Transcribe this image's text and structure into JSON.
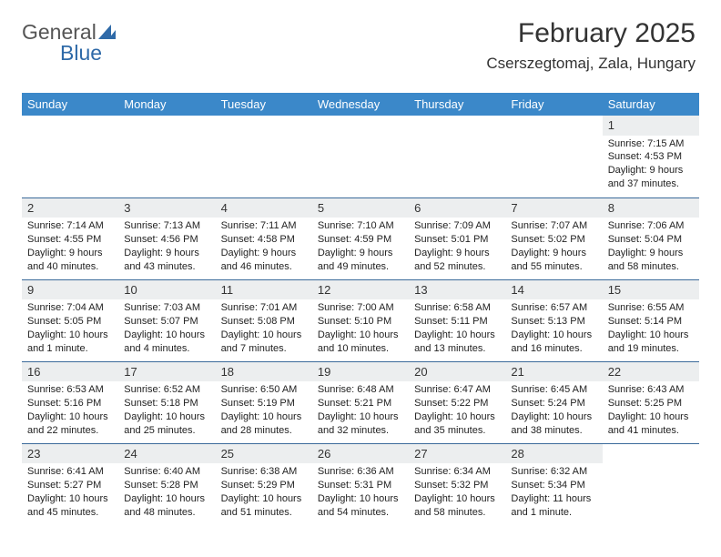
{
  "logo": {
    "text1": "General",
    "text2": "Blue"
  },
  "header": {
    "title": "February 2025",
    "location": "Cserszegtomaj, Zala, Hungary"
  },
  "colors": {
    "header_bg": "#3b88c9",
    "header_text": "#ffffff",
    "daynum_bg": "#eceeef",
    "row_border": "#3b6a9a",
    "logo_gray": "#555555",
    "logo_blue": "#2f6aa8",
    "body_text": "#222222",
    "page_bg": "#ffffff"
  },
  "day_headers": [
    "Sunday",
    "Monday",
    "Tuesday",
    "Wednesday",
    "Thursday",
    "Friday",
    "Saturday"
  ],
  "weeks": [
    [
      null,
      null,
      null,
      null,
      null,
      null,
      {
        "n": "1",
        "sunrise": "Sunrise: 7:15 AM",
        "sunset": "Sunset: 4:53 PM",
        "daylight": "Daylight: 9 hours and 37 minutes."
      }
    ],
    [
      {
        "n": "2",
        "sunrise": "Sunrise: 7:14 AM",
        "sunset": "Sunset: 4:55 PM",
        "daylight": "Daylight: 9 hours and 40 minutes."
      },
      {
        "n": "3",
        "sunrise": "Sunrise: 7:13 AM",
        "sunset": "Sunset: 4:56 PM",
        "daylight": "Daylight: 9 hours and 43 minutes."
      },
      {
        "n": "4",
        "sunrise": "Sunrise: 7:11 AM",
        "sunset": "Sunset: 4:58 PM",
        "daylight": "Daylight: 9 hours and 46 minutes."
      },
      {
        "n": "5",
        "sunrise": "Sunrise: 7:10 AM",
        "sunset": "Sunset: 4:59 PM",
        "daylight": "Daylight: 9 hours and 49 minutes."
      },
      {
        "n": "6",
        "sunrise": "Sunrise: 7:09 AM",
        "sunset": "Sunset: 5:01 PM",
        "daylight": "Daylight: 9 hours and 52 minutes."
      },
      {
        "n": "7",
        "sunrise": "Sunrise: 7:07 AM",
        "sunset": "Sunset: 5:02 PM",
        "daylight": "Daylight: 9 hours and 55 minutes."
      },
      {
        "n": "8",
        "sunrise": "Sunrise: 7:06 AM",
        "sunset": "Sunset: 5:04 PM",
        "daylight": "Daylight: 9 hours and 58 minutes."
      }
    ],
    [
      {
        "n": "9",
        "sunrise": "Sunrise: 7:04 AM",
        "sunset": "Sunset: 5:05 PM",
        "daylight": "Daylight: 10 hours and 1 minute."
      },
      {
        "n": "10",
        "sunrise": "Sunrise: 7:03 AM",
        "sunset": "Sunset: 5:07 PM",
        "daylight": "Daylight: 10 hours and 4 minutes."
      },
      {
        "n": "11",
        "sunrise": "Sunrise: 7:01 AM",
        "sunset": "Sunset: 5:08 PM",
        "daylight": "Daylight: 10 hours and 7 minutes."
      },
      {
        "n": "12",
        "sunrise": "Sunrise: 7:00 AM",
        "sunset": "Sunset: 5:10 PM",
        "daylight": "Daylight: 10 hours and 10 minutes."
      },
      {
        "n": "13",
        "sunrise": "Sunrise: 6:58 AM",
        "sunset": "Sunset: 5:11 PM",
        "daylight": "Daylight: 10 hours and 13 minutes."
      },
      {
        "n": "14",
        "sunrise": "Sunrise: 6:57 AM",
        "sunset": "Sunset: 5:13 PM",
        "daylight": "Daylight: 10 hours and 16 minutes."
      },
      {
        "n": "15",
        "sunrise": "Sunrise: 6:55 AM",
        "sunset": "Sunset: 5:14 PM",
        "daylight": "Daylight: 10 hours and 19 minutes."
      }
    ],
    [
      {
        "n": "16",
        "sunrise": "Sunrise: 6:53 AM",
        "sunset": "Sunset: 5:16 PM",
        "daylight": "Daylight: 10 hours and 22 minutes."
      },
      {
        "n": "17",
        "sunrise": "Sunrise: 6:52 AM",
        "sunset": "Sunset: 5:18 PM",
        "daylight": "Daylight: 10 hours and 25 minutes."
      },
      {
        "n": "18",
        "sunrise": "Sunrise: 6:50 AM",
        "sunset": "Sunset: 5:19 PM",
        "daylight": "Daylight: 10 hours and 28 minutes."
      },
      {
        "n": "19",
        "sunrise": "Sunrise: 6:48 AM",
        "sunset": "Sunset: 5:21 PM",
        "daylight": "Daylight: 10 hours and 32 minutes."
      },
      {
        "n": "20",
        "sunrise": "Sunrise: 6:47 AM",
        "sunset": "Sunset: 5:22 PM",
        "daylight": "Daylight: 10 hours and 35 minutes."
      },
      {
        "n": "21",
        "sunrise": "Sunrise: 6:45 AM",
        "sunset": "Sunset: 5:24 PM",
        "daylight": "Daylight: 10 hours and 38 minutes."
      },
      {
        "n": "22",
        "sunrise": "Sunrise: 6:43 AM",
        "sunset": "Sunset: 5:25 PM",
        "daylight": "Daylight: 10 hours and 41 minutes."
      }
    ],
    [
      {
        "n": "23",
        "sunrise": "Sunrise: 6:41 AM",
        "sunset": "Sunset: 5:27 PM",
        "daylight": "Daylight: 10 hours and 45 minutes."
      },
      {
        "n": "24",
        "sunrise": "Sunrise: 6:40 AM",
        "sunset": "Sunset: 5:28 PM",
        "daylight": "Daylight: 10 hours and 48 minutes."
      },
      {
        "n": "25",
        "sunrise": "Sunrise: 6:38 AM",
        "sunset": "Sunset: 5:29 PM",
        "daylight": "Daylight: 10 hours and 51 minutes."
      },
      {
        "n": "26",
        "sunrise": "Sunrise: 6:36 AM",
        "sunset": "Sunset: 5:31 PM",
        "daylight": "Daylight: 10 hours and 54 minutes."
      },
      {
        "n": "27",
        "sunrise": "Sunrise: 6:34 AM",
        "sunset": "Sunset: 5:32 PM",
        "daylight": "Daylight: 10 hours and 58 minutes."
      },
      {
        "n": "28",
        "sunrise": "Sunrise: 6:32 AM",
        "sunset": "Sunset: 5:34 PM",
        "daylight": "Daylight: 11 hours and 1 minute."
      },
      null
    ]
  ]
}
